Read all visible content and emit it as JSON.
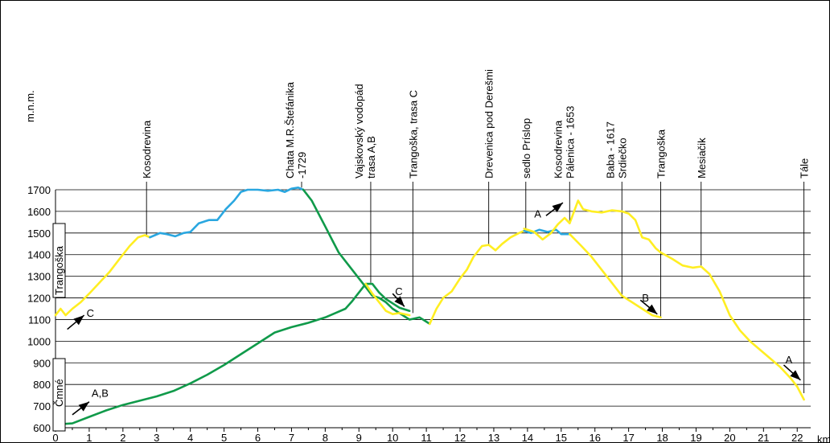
{
  "chart_data": {
    "type": "line",
    "ylabel": "m.n.m.",
    "xlabel": "km",
    "xlim": [
      0,
      22.4
    ],
    "ylim": [
      600,
      1700
    ],
    "x_ticks": [
      "0",
      "1",
      "2",
      "3",
      "4",
      "5",
      "6",
      "7",
      "8",
      "9",
      "10",
      "11",
      "12",
      "13",
      "14",
      "15",
      "16",
      "17",
      "18",
      "19",
      "20",
      "21",
      "22"
    ],
    "y_ticks": [
      "600",
      "700",
      "800",
      "900",
      "1000",
      "1100",
      "1200",
      "1300",
      "1400",
      "1500",
      "1600",
      "1700"
    ],
    "grid": "horizontal",
    "colors": {
      "yellow": "#ffee22",
      "blue": "#2aa7e0",
      "green": "#109a4a"
    },
    "side_labels": [
      "Trangoška",
      "Čmné"
    ],
    "place_labels": [
      {
        "km": 2.7,
        "lines": [
          "Kosodrevina"
        ]
      },
      {
        "km": 7.3,
        "lines": [
          "Chata M.R.Štefánika",
          "-1729"
        ]
      },
      {
        "km": 9.35,
        "lines": [
          "Vajskovský vodopád",
          "trasa A,B"
        ]
      },
      {
        "km": 10.6,
        "lines": [
          "Trangoška, trasa C"
        ]
      },
      {
        "km": 12.85,
        "lines": [
          "Drevenica pod Derešmi"
        ]
      },
      {
        "km": 13.95,
        "lines": [
          "sedlo Príslop"
        ]
      },
      {
        "km": 15.25,
        "lines": [
          "Kosodrevina",
          "Pálenica - 1653"
        ]
      },
      {
        "km": 16.8,
        "lines": [
          "Baba - 1617",
          "Srdiečko"
        ]
      },
      {
        "km": 17.95,
        "lines": [
          "Trangoška"
        ]
      },
      {
        "km": 19.15,
        "lines": [
          "Mesiačik"
        ]
      },
      {
        "km": 22.2,
        "lines": [
          "Tále"
        ]
      }
    ],
    "route_arrows": [
      {
        "label": "C",
        "from": [
          0.35,
          1055
        ],
        "to": [
          0.85,
          1120
        ]
      },
      {
        "label": "A,B",
        "from": [
          0.5,
          660
        ],
        "to": [
          1.0,
          720
        ]
      },
      {
        "label": "C",
        "from": [
          10.0,
          1220
        ],
        "to": [
          10.35,
          1160
        ]
      },
      {
        "label": "A",
        "from": [
          14.55,
          1580
        ],
        "to": [
          15.05,
          1640
        ]
      },
      {
        "label": "B",
        "from": [
          17.35,
          1190
        ],
        "to": [
          17.85,
          1125
        ]
      },
      {
        "label": "A",
        "from": [
          21.6,
          890
        ],
        "to": [
          22.1,
          820
        ]
      }
    ],
    "series": [
      {
        "color": "yellow",
        "x": [
          0,
          0.15,
          0.3,
          0.5,
          0.75,
          1.0,
          1.3,
          1.6,
          1.9,
          2.2,
          2.45,
          2.65,
          2.8
        ],
        "y": [
          1120,
          1150,
          1120,
          1150,
          1180,
          1220,
          1270,
          1320,
          1380,
          1440,
          1480,
          1490,
          1480
        ]
      },
      {
        "color": "blue",
        "x": [
          2.8,
          2.95,
          3.1,
          3.3,
          3.55,
          3.8,
          4.0,
          4.25,
          4.55,
          4.8,
          5.05,
          5.3,
          5.5,
          5.7,
          6.0,
          6.3,
          6.6,
          6.8,
          7.0,
          7.2,
          7.35
        ],
        "y": [
          1480,
          1490,
          1500,
          1495,
          1485,
          1500,
          1505,
          1545,
          1560,
          1560,
          1610,
          1650,
          1690,
          1700,
          1700,
          1695,
          1700,
          1690,
          1705,
          1710,
          1700
        ]
      },
      {
        "color": "green",
        "x": [
          7.35,
          7.6,
          7.8,
          8.0,
          8.2,
          8.4,
          8.6,
          8.8,
          9.0,
          9.2,
          9.4,
          9.6,
          9.8,
          10.0,
          10.2,
          10.5,
          10.8,
          11.0,
          11.1
        ],
        "y": [
          1700,
          1650,
          1590,
          1530,
          1470,
          1410,
          1370,
          1330,
          1290,
          1250,
          1210,
          1200,
          1180,
          1150,
          1130,
          1100,
          1110,
          1090,
          1080
        ]
      },
      {
        "color": "green",
        "x": [
          0,
          0.5,
          1.0,
          1.5,
          2.0,
          2.5,
          3.0,
          3.5,
          4.0,
          4.5,
          5.0,
          5.5,
          6.0,
          6.5,
          7.0,
          7.5,
          8.0,
          8.3,
          8.6,
          8.8,
          9.0,
          9.2,
          9.4,
          9.6,
          9.8,
          10.0,
          10.2,
          10.5
        ],
        "y": [
          615,
          620,
          650,
          680,
          705,
          725,
          745,
          770,
          805,
          845,
          890,
          940,
          990,
          1040,
          1065,
          1085,
          1110,
          1130,
          1150,
          1185,
          1225,
          1265,
          1265,
          1225,
          1195,
          1175,
          1155,
          1140
        ]
      },
      {
        "color": "yellow",
        "x": [
          9.2,
          9.4,
          9.6,
          9.8,
          10.0,
          10.2,
          10.5
        ],
        "y": [
          1265,
          1220,
          1180,
          1140,
          1125,
          1130,
          1120
        ]
      },
      {
        "color": "yellow",
        "x": [
          11.1,
          11.3,
          11.5,
          11.75,
          12.0,
          12.2,
          12.4,
          12.65,
          12.85,
          13.05,
          13.25,
          13.5,
          13.75,
          13.9
        ],
        "y": [
          1080,
          1150,
          1200,
          1230,
          1290,
          1330,
          1390,
          1440,
          1445,
          1420,
          1450,
          1480,
          1500,
          1510
        ]
      },
      {
        "color": "blue",
        "x": [
          13.9,
          14.1,
          14.35,
          14.6,
          14.85,
          15.0,
          15.25
        ],
        "y": [
          1510,
          1500,
          1515,
          1505,
          1515,
          1495,
          1495
        ]
      },
      {
        "color": "yellow",
        "x": [
          13.9,
          14.2,
          14.45,
          14.7,
          14.9,
          15.1,
          15.25
        ],
        "y": [
          1520,
          1505,
          1470,
          1500,
          1540,
          1570,
          1545
        ]
      },
      {
        "color": "yellow",
        "x": [
          15.25,
          15.5,
          15.65,
          15.9,
          16.2,
          16.5,
          16.8,
          17.0,
          17.2,
          17.4,
          17.6,
          17.8,
          17.95
        ],
        "y": [
          1545,
          1650,
          1610,
          1600,
          1595,
          1605,
          1600,
          1590,
          1560,
          1480,
          1470,
          1430,
          1410
        ]
      },
      {
        "color": "yellow",
        "x": [
          15.25,
          15.6,
          15.9,
          16.2,
          16.5,
          16.8,
          17.1,
          17.4,
          17.7,
          17.95
        ],
        "y": [
          1495,
          1440,
          1390,
          1330,
          1270,
          1210,
          1180,
          1150,
          1120,
          1110
        ]
      },
      {
        "color": "yellow",
        "x": [
          17.95,
          18.3,
          18.6,
          18.9,
          19.15,
          19.4,
          19.7,
          20.0,
          20.3,
          20.6,
          20.9,
          21.2,
          21.5,
          21.8,
          22.0,
          22.2
        ],
        "y": [
          1410,
          1380,
          1350,
          1340,
          1345,
          1310,
          1230,
          1120,
          1050,
          1000,
          960,
          920,
          880,
          830,
          790,
          730
        ]
      }
    ]
  }
}
